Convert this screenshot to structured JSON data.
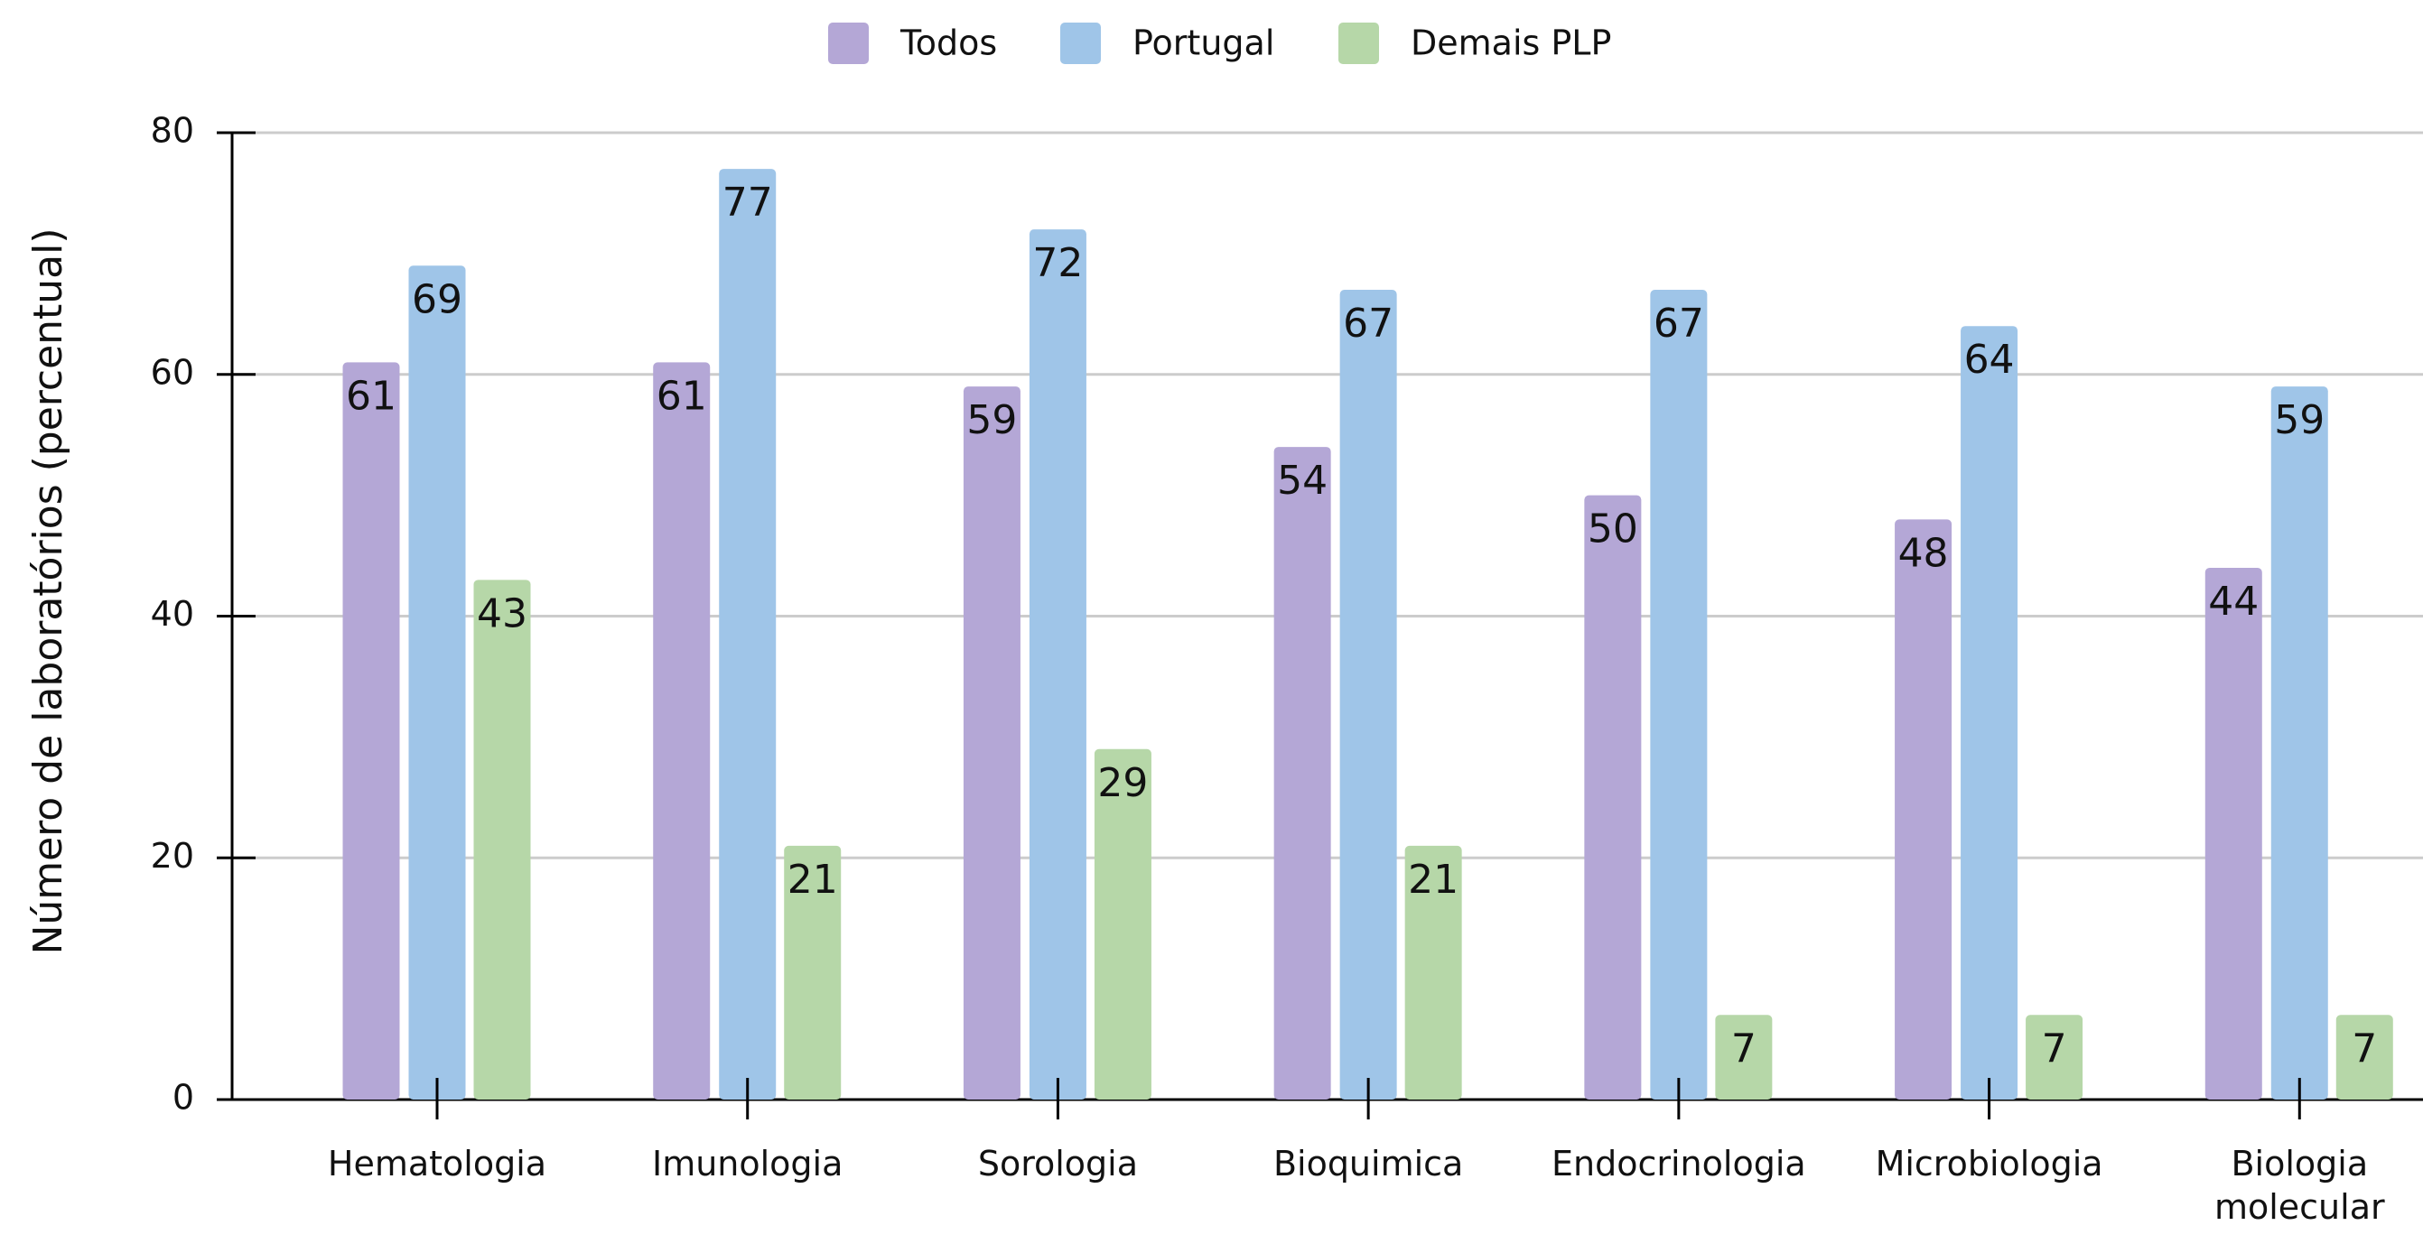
{
  "chart_data": {
    "type": "bar",
    "y_label": "Número de laboratórios (percentual)",
    "categories": [
      "Hematologia",
      "Imunologia",
      "Sorologia",
      "Bioquimica",
      "Endocrinologia",
      "Microbiologia",
      "Biologia\nmolecular"
    ],
    "series": [
      {
        "name": "Todos",
        "color": "#b4a7d6",
        "values": [
          61,
          61,
          59,
          54,
          50,
          48,
          44
        ]
      },
      {
        "name": "Portugal",
        "color": "#9fc5e8",
        "values": [
          69,
          77,
          72,
          67,
          67,
          64,
          59
        ]
      },
      {
        "name": "Demais PLP",
        "color": "#b6d7a8",
        "values": [
          43,
          21,
          29,
          21,
          7,
          7,
          7
        ]
      }
    ],
    "ylim": [
      0,
      80
    ],
    "yticks": [
      0,
      20,
      40,
      60,
      80
    ],
    "grid": true,
    "legend": "top"
  }
}
